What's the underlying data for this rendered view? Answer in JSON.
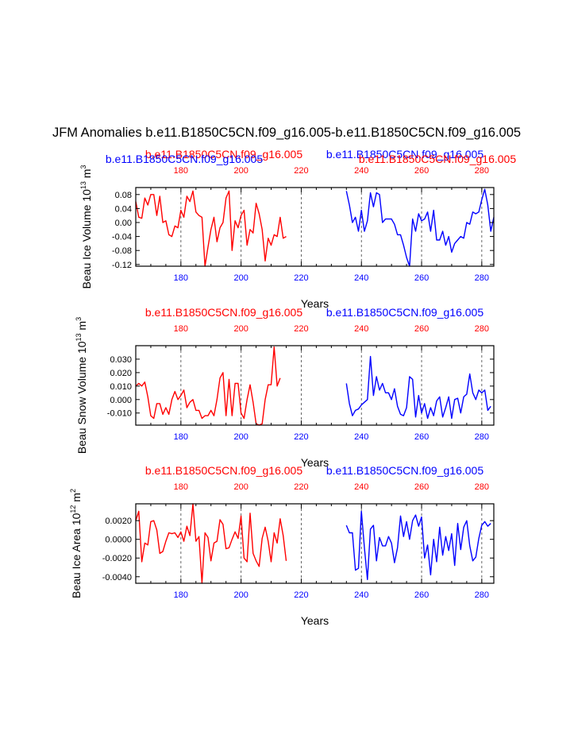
{
  "title": "JFM Anomalies b.e11.B1850C5CN.f09_g16.005-b.e11.B1850C5CN.f09_g16.005",
  "colors": {
    "series_a": "#ff0000",
    "series_b": "#0000ff",
    "axis": "#000000",
    "grid": "#555555"
  },
  "chart_data": [
    {
      "type": "line",
      "ylabel": "Beau Ice Volume 10",
      "ylabel_sup": "13",
      "ylabel_unit": "m",
      "ylabel_unit_sup": "3",
      "xlabel": "Years",
      "xlim": [
        165,
        284
      ],
      "ylim": [
        -0.125,
        0.1
      ],
      "yticks": [
        -0.12,
        -0.08,
        -0.04,
        0.0,
        0.04,
        0.08
      ],
      "ytick_labels": [
        "-0.12",
        "-0.08",
        "-0.04",
        "0.00",
        "0.04",
        "0.08"
      ],
      "xticks": [
        180,
        200,
        220,
        240,
        260,
        280
      ],
      "xtick_labels": [
        "180",
        "200",
        "220",
        "240",
        "260",
        "280"
      ],
      "vgrid": [
        180,
        200,
        220,
        240,
        260,
        280
      ],
      "series": [
        {
          "name": "b.e11.B1850C5CN.f09_g16.005",
          "color": "#ff0000",
          "x0": 165,
          "values": [
            0.06,
            0.015,
            0.012,
            0.07,
            0.05,
            0.08,
            0.08,
            0.02,
            0.075,
            0.0,
            0.005,
            -0.035,
            -0.04,
            -0.01,
            -0.015,
            0.035,
            0.015,
            0.075,
            0.06,
            0.09,
            0.03,
            0.02,
            0.015,
            -0.125,
            -0.07,
            -0.02,
            0.015,
            -0.055,
            -0.015,
            0.0,
            0.07,
            0.09,
            -0.08,
            0.005,
            -0.015,
            0.02,
            0.035,
            -0.065,
            -0.02,
            -0.03,
            0.055,
            0.025,
            -0.02,
            -0.11,
            -0.045,
            -0.065,
            -0.035,
            -0.04,
            0.015,
            -0.045,
            -0.04
          ]
        },
        {
          "name": "b.e11.B1850C5CN.f09_g16.005",
          "color": "#0000ff",
          "x0": 235,
          "values": [
            0.09,
            0.05,
            0.0,
            0.015,
            -0.025,
            0.035,
            -0.025,
            0.005,
            0.085,
            0.045,
            0.085,
            0.08,
            0.0,
            0.01,
            0.01,
            0.01,
            -0.005,
            -0.035,
            -0.035,
            -0.065,
            -0.1,
            -0.125,
            0.01,
            -0.025,
            0.025,
            0.005,
            0.01,
            0.03,
            -0.025,
            0.035,
            -0.05,
            -0.05,
            -0.025,
            -0.065,
            -0.04,
            -0.085,
            -0.06,
            -0.05,
            -0.04,
            -0.045,
            0.0,
            -0.005,
            0.03,
            0.025,
            0.03,
            0.065,
            0.095,
            0.05,
            -0.025,
            0.015
          ]
        }
      ],
      "top_labels": {
        "left": "b.e11.B1850C5CN.f09_g16.005",
        "right": "b.e11.B1850C5CN.f09_g16.005"
      }
    },
    {
      "type": "line",
      "ylabel": "Beau Snow Volume 10",
      "ylabel_sup": "13",
      "ylabel_unit": "m",
      "ylabel_unit_sup": "3",
      "xlabel": "Years",
      "xlim": [
        165,
        284
      ],
      "ylim": [
        -0.019,
        0.04
      ],
      "yticks": [
        -0.01,
        0.0,
        0.01,
        0.02,
        0.03
      ],
      "ytick_labels": [
        "-0.010",
        "0.000",
        "0.010",
        "0.020",
        "0.030"
      ],
      "xticks": [
        180,
        200,
        220,
        240,
        260,
        280
      ],
      "xtick_labels": [
        "180",
        "200",
        "220",
        "240",
        "260",
        "280"
      ],
      "vgrid": [
        180,
        200,
        220,
        240,
        260,
        280
      ],
      "series": [
        {
          "name": "b.e11.B1850C5CN.f09_g16.005",
          "color": "#ff0000",
          "x0": 165,
          "values": [
            0.01,
            0.012,
            0.01,
            0.013,
            0.002,
            -0.012,
            -0.014,
            -0.003,
            -0.003,
            -0.011,
            -0.006,
            -0.011,
            0.0,
            0.006,
            0.0,
            0.003,
            0.007,
            -0.006,
            -0.002,
            0.0,
            -0.008,
            -0.008,
            -0.014,
            -0.012,
            -0.012,
            -0.008,
            -0.012,
            0.0,
            0.016,
            0.02,
            -0.012,
            0.015,
            -0.012,
            0.012,
            0.012,
            -0.01,
            -0.014,
            0.0,
            0.011,
            -0.002,
            -0.018,
            -0.019,
            -0.018,
            0.0,
            0.011,
            0.011,
            0.039,
            0.01,
            0.016
          ]
        },
        {
          "name": "b.e11.B1850C5CN.f09_g16.005",
          "color": "#0000ff",
          "x0": 235,
          "values": [
            0.012,
            -0.003,
            -0.012,
            -0.008,
            -0.007,
            -0.004,
            -0.002,
            0.0,
            0.032,
            0.003,
            0.017,
            0.007,
            0.012,
            0.005,
            0.005,
            0.0,
            0.008,
            -0.005,
            -0.011,
            -0.012,
            -0.006,
            0.017,
            0.015,
            -0.013,
            0.003,
            -0.01,
            -0.003,
            -0.014,
            -0.006,
            -0.012,
            -0.001,
            0.002,
            -0.013,
            -0.006,
            0.002,
            -0.014,
            0.0,
            0.001,
            -0.01,
            0.002,
            0.004,
            0.019,
            0.005,
            0.0,
            0.007,
            0.005,
            0.007,
            -0.008,
            -0.005
          ]
        }
      ],
      "top_labels": {
        "left": "b.e11.B1850C5CN.f09_g16.005",
        "right": "b.e11.B1850C5CN.f09_g16.005"
      }
    },
    {
      "type": "line",
      "ylabel": "Beau Ice Area 10",
      "ylabel_sup": "12",
      "ylabel_unit": "m",
      "ylabel_unit_sup": "2",
      "xlabel": "Years",
      "xlim": [
        165,
        284
      ],
      "ylim": [
        -0.0047,
        0.0038
      ],
      "yticks": [
        -0.004,
        -0.002,
        0.0,
        0.002
      ],
      "ytick_labels": [
        "-0.0040",
        "-0.0020",
        "0.0000",
        "0.0020"
      ],
      "xticks": [
        180,
        200,
        220,
        240,
        260,
        280
      ],
      "xtick_labels": [
        "180",
        "200",
        "220",
        "240",
        "260",
        "280"
      ],
      "vgrid": [
        180,
        200,
        220,
        240,
        260,
        280
      ],
      "series": [
        {
          "name": "b.e11.B1850C5CN.f09_g16.005",
          "color": "#ff0000",
          "x0": 165,
          "values": [
            0.002,
            0.003,
            -0.0024,
            -0.0004,
            -0.0006,
            0.0019,
            0.002,
            0.001,
            -0.0015,
            -0.0013,
            -0.0002,
            0.0007,
            0.0006,
            0.0007,
            0.0002,
            0.0008,
            -0.0002,
            0.0014,
            0.0004,
            0.0038,
            -0.0002,
            0.0003,
            -0.0047,
            0.0007,
            0.0002,
            -0.0023,
            -0.0004,
            -0.0002,
            0.0021,
            0.0016,
            -0.001,
            -0.0009,
            0.0,
            0.0008,
            0.0001,
            0.0025,
            -0.002,
            -0.0024,
            0.0028,
            -0.0015,
            -0.0023,
            -0.0029,
            0.0001,
            0.0013,
            -0.0002,
            -0.0024,
            0.0007,
            -0.0004,
            0.0022,
            0.0004,
            -0.0023
          ]
        },
        {
          "name": "b.e11.B1850C5CN.f09_g16.005",
          "color": "#0000ff",
          "x0": 235,
          "values": [
            0.0015,
            0.0007,
            0.0007,
            -0.0033,
            -0.0031,
            0.003,
            -0.0009,
            -0.0043,
            0.0011,
            0.0015,
            -0.0023,
            0.0002,
            -0.0007,
            -0.0007,
            0.0003,
            -0.0004,
            -0.0025,
            -0.0009,
            0.0025,
            0.0003,
            0.0019,
            0.0,
            0.002,
            0.0026,
            0.0014,
            0.0024,
            -0.002,
            -0.0006,
            -0.0038,
            0.0,
            -0.0024,
            0.0013,
            -0.0017,
            0.0003,
            -0.0012,
            0.0006,
            -0.0028,
            0.0017,
            -0.0011,
            0.0013,
            0.002,
            -0.0007,
            -0.0023,
            -0.0019,
            0.0001,
            0.0015,
            0.0019,
            0.0014,
            0.0017
          ]
        }
      ],
      "top_labels": {
        "left": "b.e11.B1850C5CN.f09_g16.005",
        "right": "b.e11.B1850C5CN.f09_g16.005"
      }
    }
  ]
}
